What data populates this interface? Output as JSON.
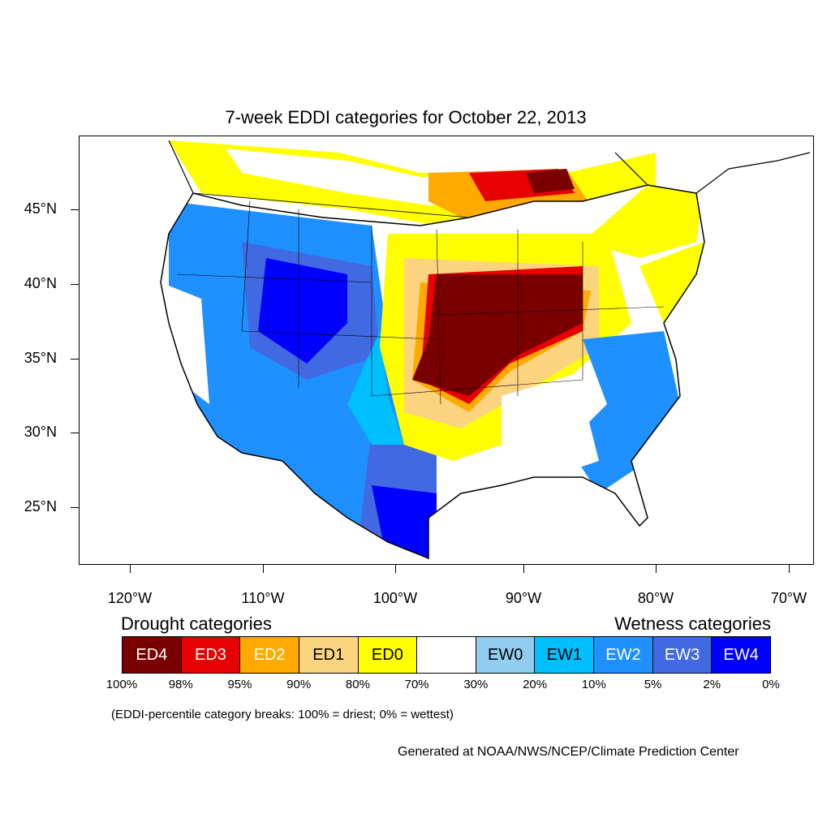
{
  "title": "7-week EDDI categories for October 22, 2013",
  "lat_labels": [
    "45°N",
    "40°N",
    "35°N",
    "30°N",
    "25°N"
  ],
  "lon_labels": [
    "120°W",
    "110°W",
    "100°W",
    "90°W",
    "80°W",
    "70°W"
  ],
  "legend": {
    "drought_heading": "Drought categories",
    "wetness_heading": "Wetness categories",
    "categories": [
      {
        "label": "ED4",
        "color": "#7a0000",
        "text_color": "#ffffff"
      },
      {
        "label": "ED3",
        "color": "#e60000",
        "text_color": "#ffffff"
      },
      {
        "label": "ED2",
        "color": "#ffaa00",
        "text_color": "#ffffff"
      },
      {
        "label": "ED1",
        "color": "#fcd37f",
        "text_color": "#000000"
      },
      {
        "label": "ED0",
        "color": "#ffff00",
        "text_color": "#000000"
      },
      {
        "label": "",
        "color": "#ffffff",
        "text_color": "#000000"
      },
      {
        "label": "EW0",
        "color": "#90cdf0",
        "text_color": "#000000"
      },
      {
        "label": "EW1",
        "color": "#00bfff",
        "text_color": "#000000"
      },
      {
        "label": "EW2",
        "color": "#1e90ff",
        "text_color": "#ffffff"
      },
      {
        "label": "EW3",
        "color": "#4169e1",
        "text_color": "#ffffff"
      },
      {
        "label": "EW4",
        "color": "#0000ff",
        "text_color": "#ffffff"
      }
    ],
    "breaks": [
      "100%",
      "98%",
      "95%",
      "90%",
      "80%",
      "70%",
      "30%",
      "20%",
      "10%",
      "5%",
      "2%",
      "0%"
    ]
  },
  "note": "(EDDI-percentile category breaks: 100% = driest; 0% = wettest)",
  "credit": "Generated at NOAA/NWS/NCEP/Climate Prediction Center"
}
